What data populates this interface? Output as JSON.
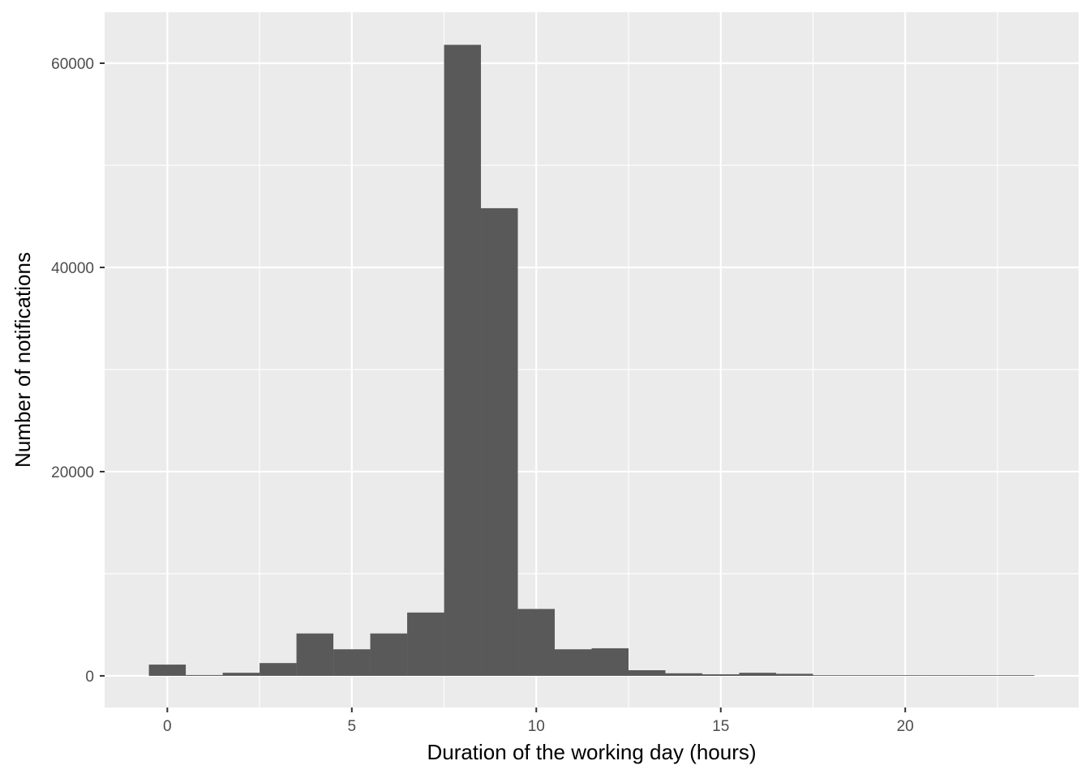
{
  "chart_data": {
    "type": "bar",
    "subtype": "histogram",
    "xlabel": "Duration of the working day (hours)",
    "ylabel": "Number of notifications",
    "bin_width": 1,
    "bins": [
      {
        "center": 0,
        "count": 1100
      },
      {
        "center": 1,
        "count": 80
      },
      {
        "center": 2,
        "count": 300
      },
      {
        "center": 3,
        "count": 1250
      },
      {
        "center": 4,
        "count": 4150
      },
      {
        "center": 5,
        "count": 2600
      },
      {
        "center": 6,
        "count": 4150
      },
      {
        "center": 7,
        "count": 6200
      },
      {
        "center": 8,
        "count": 61800
      },
      {
        "center": 9,
        "count": 45800
      },
      {
        "center": 10,
        "count": 6550
      },
      {
        "center": 11,
        "count": 2600
      },
      {
        "center": 12,
        "count": 2700
      },
      {
        "center": 13,
        "count": 550
      },
      {
        "center": 14,
        "count": 250
      },
      {
        "center": 15,
        "count": 150
      },
      {
        "center": 16,
        "count": 300
      },
      {
        "center": 17,
        "count": 200
      },
      {
        "center": 18,
        "count": 60
      },
      {
        "center": 19,
        "count": 40
      },
      {
        "center": 20,
        "count": 30
      },
      {
        "center": 21,
        "count": 0
      },
      {
        "center": 22,
        "count": 20
      },
      {
        "center": 23,
        "count": 15
      }
    ],
    "xlim": [
      -1.7,
      24.7
    ],
    "ylim": [
      -3100,
      65000
    ],
    "x_ticks": [
      0,
      5,
      10,
      15,
      20
    ],
    "x_tick_labels": [
      "0",
      "5",
      "10",
      "15",
      "20"
    ],
    "y_ticks": [
      0,
      20000,
      40000,
      60000
    ],
    "y_tick_labels": [
      "0",
      "20000",
      "40000",
      "60000"
    ],
    "grid": true,
    "legend": "none",
    "colors": {
      "bar_fill": "#595959",
      "panel_background": "#ebebeb",
      "grid_line": "#ffffff",
      "tick_text": "#4d4d4d",
      "axis_title_text": "#000000"
    }
  }
}
